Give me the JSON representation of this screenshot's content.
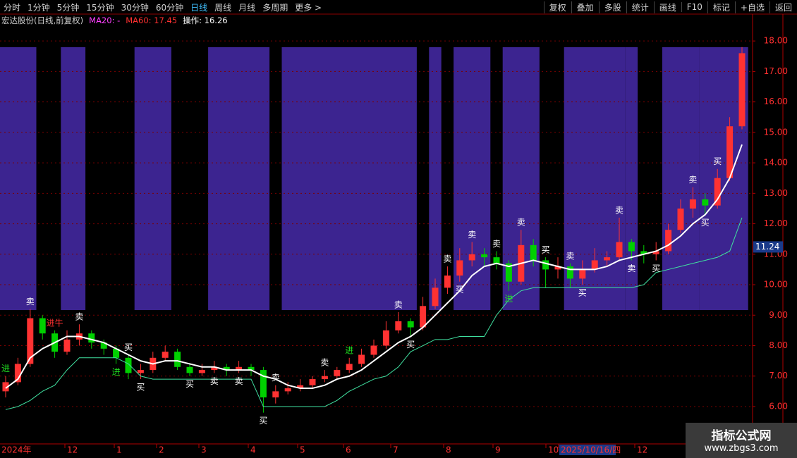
{
  "toolbar": {
    "periods": [
      "分时",
      "1分钟",
      "5分钟",
      "15分钟",
      "30分钟",
      "60分钟",
      "日线",
      "周线",
      "月线",
      "多周期",
      "更多 >"
    ],
    "tools": [
      "复权",
      "叠加",
      "多股",
      "统计",
      "画线",
      "F10",
      "标记",
      "+自选",
      "返回"
    ]
  },
  "info": {
    "stock": "宏达股份(日线,前复权)",
    "ma20": "MA20: -",
    "ma60": "MA60: 17.45",
    "op": "操作: 16.26"
  },
  "watermark": {
    "name": "指标公式网",
    "url": "www.zbgs3.com"
  },
  "chart_data": {
    "type": "candlestick",
    "open": [
      6.5,
      6.8,
      7.4,
      8.9,
      8.4,
      7.8,
      8.2,
      8.4,
      8.1,
      7.9,
      7.6,
      7.1,
      7.2,
      7.6,
      7.8,
      7.3,
      7.1,
      7.2,
      7.3,
      7.2,
      7.3,
      7.2,
      6.3,
      6.5,
      6.6,
      6.7,
      6.9,
      7.0,
      7.2,
      7.4,
      7.7,
      8.0,
      8.5,
      8.8,
      8.6,
      9.3,
      9.9,
      10.3,
      10.8,
      11.0,
      10.9,
      10.7,
      10.1,
      11.3,
      10.8,
      10.5,
      10.6,
      10.2,
      10.5,
      10.8,
      10.9,
      11.4,
      11.1,
      11.0,
      11.1,
      11.8,
      12.5,
      12.8,
      12.6,
      13.5,
      15.2
    ],
    "high": [
      7.0,
      7.6,
      9.2,
      9.0,
      8.5,
      8.5,
      8.7,
      8.5,
      8.2,
      8.0,
      7.7,
      7.4,
      7.8,
      8.0,
      7.9,
      7.4,
      7.4,
      7.5,
      7.4,
      7.5,
      7.4,
      7.3,
      6.7,
      6.8,
      6.9,
      7.0,
      7.2,
      7.3,
      7.6,
      7.9,
      8.2,
      8.8,
      9.1,
      8.9,
      9.6,
      10.2,
      10.6,
      11.2,
      11.4,
      11.2,
      11.1,
      10.8,
      11.8,
      11.5,
      10.9,
      10.9,
      10.7,
      10.8,
      11.2,
      11.1,
      12.2,
      11.5,
      11.3,
      11.4,
      12.0,
      12.8,
      13.2,
      13.0,
      13.8,
      15.5,
      17.8
    ],
    "low": [
      6.3,
      6.7,
      7.3,
      8.2,
      7.6,
      7.7,
      8.0,
      7.9,
      7.7,
      7.4,
      6.9,
      6.9,
      7.1,
      7.5,
      7.2,
      7.0,
      7.0,
      7.1,
      7.0,
      7.1,
      7.0,
      5.8,
      6.1,
      6.4,
      6.5,
      6.6,
      6.8,
      6.9,
      7.1,
      7.3,
      7.6,
      7.9,
      8.4,
      8.3,
      8.5,
      9.2,
      9.7,
      10.1,
      10.6,
      10.6,
      10.5,
      9.8,
      10.0,
      10.6,
      9.9,
      10.2,
      9.9,
      10.0,
      10.4,
      10.6,
      10.8,
      10.8,
      10.7,
      10.8,
      11.0,
      11.7,
      12.2,
      12.3,
      12.5,
      13.4,
      15.1
    ],
    "close": [
      6.8,
      7.4,
      8.9,
      8.4,
      7.8,
      8.2,
      8.4,
      8.1,
      7.9,
      7.6,
      7.1,
      7.2,
      7.6,
      7.8,
      7.3,
      7.1,
      7.2,
      7.3,
      7.2,
      7.3,
      7.2,
      6.3,
      6.5,
      6.6,
      6.7,
      6.9,
      7.0,
      7.2,
      7.4,
      7.7,
      8.0,
      8.5,
      8.8,
      8.6,
      9.3,
      9.9,
      10.3,
      10.8,
      11.0,
      10.9,
      10.7,
      10.1,
      11.3,
      10.8,
      10.5,
      10.6,
      10.2,
      10.5,
      10.8,
      10.9,
      11.4,
      11.1,
      11.0,
      11.1,
      11.8,
      12.5,
      12.8,
      12.6,
      13.5,
      15.2,
      17.6
    ],
    "up_color": "#ff3232",
    "down_color": "#00d000",
    "lines": [
      {
        "color": "#ffffff",
        "values": [
          6.6,
          6.9,
          7.6,
          7.9,
          8.1,
          8.3,
          8.3,
          8.2,
          8.1,
          7.9,
          7.7,
          7.5,
          7.4,
          7.5,
          7.5,
          7.4,
          7.3,
          7.3,
          7.2,
          7.2,
          7.2,
          7.0,
          6.9,
          6.7,
          6.6,
          6.6,
          6.7,
          6.9,
          7.0,
          7.2,
          7.5,
          7.8,
          8.1,
          8.3,
          8.6,
          9.0,
          9.4,
          9.8,
          10.3,
          10.6,
          10.7,
          10.6,
          10.7,
          10.8,
          10.7,
          10.6,
          10.5,
          10.5,
          10.5,
          10.6,
          10.8,
          10.9,
          11.0,
          11.1,
          11.3,
          11.6,
          12.0,
          12.3,
          12.8,
          13.5,
          14.6
        ]
      },
      {
        "color": "#40e0a0",
        "values": [
          5.9,
          6.0,
          6.2,
          6.5,
          6.7,
          7.2,
          7.6,
          7.6,
          7.6,
          7.6,
          7.4,
          7.0,
          6.9,
          6.9,
          6.9,
          6.9,
          6.9,
          6.9,
          6.9,
          6.9,
          6.9,
          6.0,
          6.0,
          6.0,
          6.0,
          6.0,
          6.0,
          6.2,
          6.5,
          6.7,
          6.9,
          7.0,
          7.3,
          7.8,
          8.0,
          8.2,
          8.2,
          8.3,
          8.3,
          8.3,
          9.0,
          9.5,
          9.8,
          9.9,
          9.9,
          9.9,
          9.9,
          9.9,
          9.9,
          9.9,
          9.9,
          9.9,
          10.0,
          10.4,
          10.5,
          10.6,
          10.7,
          10.8,
          10.9,
          11.1,
          12.2
        ]
      }
    ],
    "signals": [
      {
        "label": "进",
        "color": "#20e020"
      },
      null,
      {
        "label": "卖",
        "color": "#ffffff"
      },
      null,
      {
        "label": "进牛",
        "color": "#ff3030"
      },
      null,
      {
        "label": "卖",
        "color": "#ffffff"
      },
      null,
      null,
      {
        "label": "进",
        "color": "#20e020"
      },
      {
        "label": "买",
        "color": "#ffffff"
      },
      {
        "label": "买",
        "color": "#ffffff"
      },
      null,
      null,
      null,
      {
        "label": "买",
        "color": "#ffffff"
      },
      null,
      {
        "label": "卖",
        "color": "#ffffff"
      },
      null,
      {
        "label": "卖",
        "color": "#ffffff"
      },
      null,
      {
        "label": "买",
        "color": "#ffffff"
      },
      {
        "label": "卖",
        "color": "#ffffff"
      },
      null,
      null,
      null,
      {
        "label": "卖",
        "color": "#ffffff"
      },
      null,
      {
        "label": "进",
        "color": "#20e020"
      },
      null,
      null,
      null,
      {
        "label": "卖",
        "color": "#ffffff"
      },
      {
        "label": "买",
        "color": "#ffffff"
      },
      null,
      null,
      {
        "label": "卖",
        "color": "#ffffff"
      },
      {
        "label": "买",
        "color": "#ffffff"
      },
      {
        "label": "卖",
        "color": "#ffffff"
      },
      null,
      {
        "label": "卖",
        "color": "#ffffff"
      },
      {
        "label": "进",
        "color": "#20e020"
      },
      {
        "label": "卖",
        "color": "#ffffff"
      },
      null,
      {
        "label": "买",
        "color": "#ffffff"
      },
      null,
      {
        "label": "卖",
        "color": "#ffffff"
      },
      {
        "label": "买",
        "color": "#ffffff"
      },
      null,
      null,
      {
        "label": "卖",
        "color": "#ffffff"
      },
      {
        "label": "卖",
        "color": "#ffffff"
      },
      null,
      {
        "label": "买",
        "color": "#ffffff"
      },
      null,
      null,
      {
        "label": "卖",
        "color": "#ffffff"
      },
      {
        "label": "买",
        "color": "#ffffff"
      },
      {
        "label": "买",
        "color": "#ffffff"
      },
      null,
      null
    ],
    "bands": [
      [
        0,
        2
      ],
      [
        5,
        6
      ],
      [
        11,
        13
      ],
      [
        17,
        21
      ],
      [
        23,
        27
      ],
      [
        28,
        33
      ],
      [
        35,
        35
      ],
      [
        37,
        37
      ],
      [
        38,
        39
      ],
      [
        41,
        43
      ],
      [
        46,
        50
      ],
      [
        51,
        51
      ],
      [
        54,
        56
      ],
      [
        57,
        57
      ],
      [
        58,
        60
      ]
    ],
    "band_color": "#3c2490",
    "ylim": [
      4.82,
      18.42
    ],
    "yticks": [
      {
        "value": 6,
        "label": "6.00"
      },
      {
        "value": 7,
        "label": "7.00"
      },
      {
        "value": 8,
        "label": "8.00"
      },
      {
        "value": 9,
        "label": "9.00"
      },
      {
        "value": 10,
        "label": "10.00"
      },
      {
        "value": 11,
        "label": "11.00"
      },
      {
        "value": 12,
        "label": "12.00"
      },
      {
        "value": 13,
        "label": "13.00"
      },
      {
        "value": 14,
        "label": "14.00"
      },
      {
        "value": 15,
        "label": "15.00"
      },
      {
        "value": 16,
        "label": "16.00"
      },
      {
        "value": 17,
        "label": "17.00"
      },
      {
        "value": 18,
        "label": "18.00"
      }
    ],
    "cursor_price": 11.24,
    "x_labels": [
      "2024年",
      "12",
      "1",
      "2",
      "3",
      "4",
      "5",
      "6",
      "7",
      "8",
      "9",
      "10",
      "2025/10/16/四",
      "12"
    ],
    "grid": true
  }
}
